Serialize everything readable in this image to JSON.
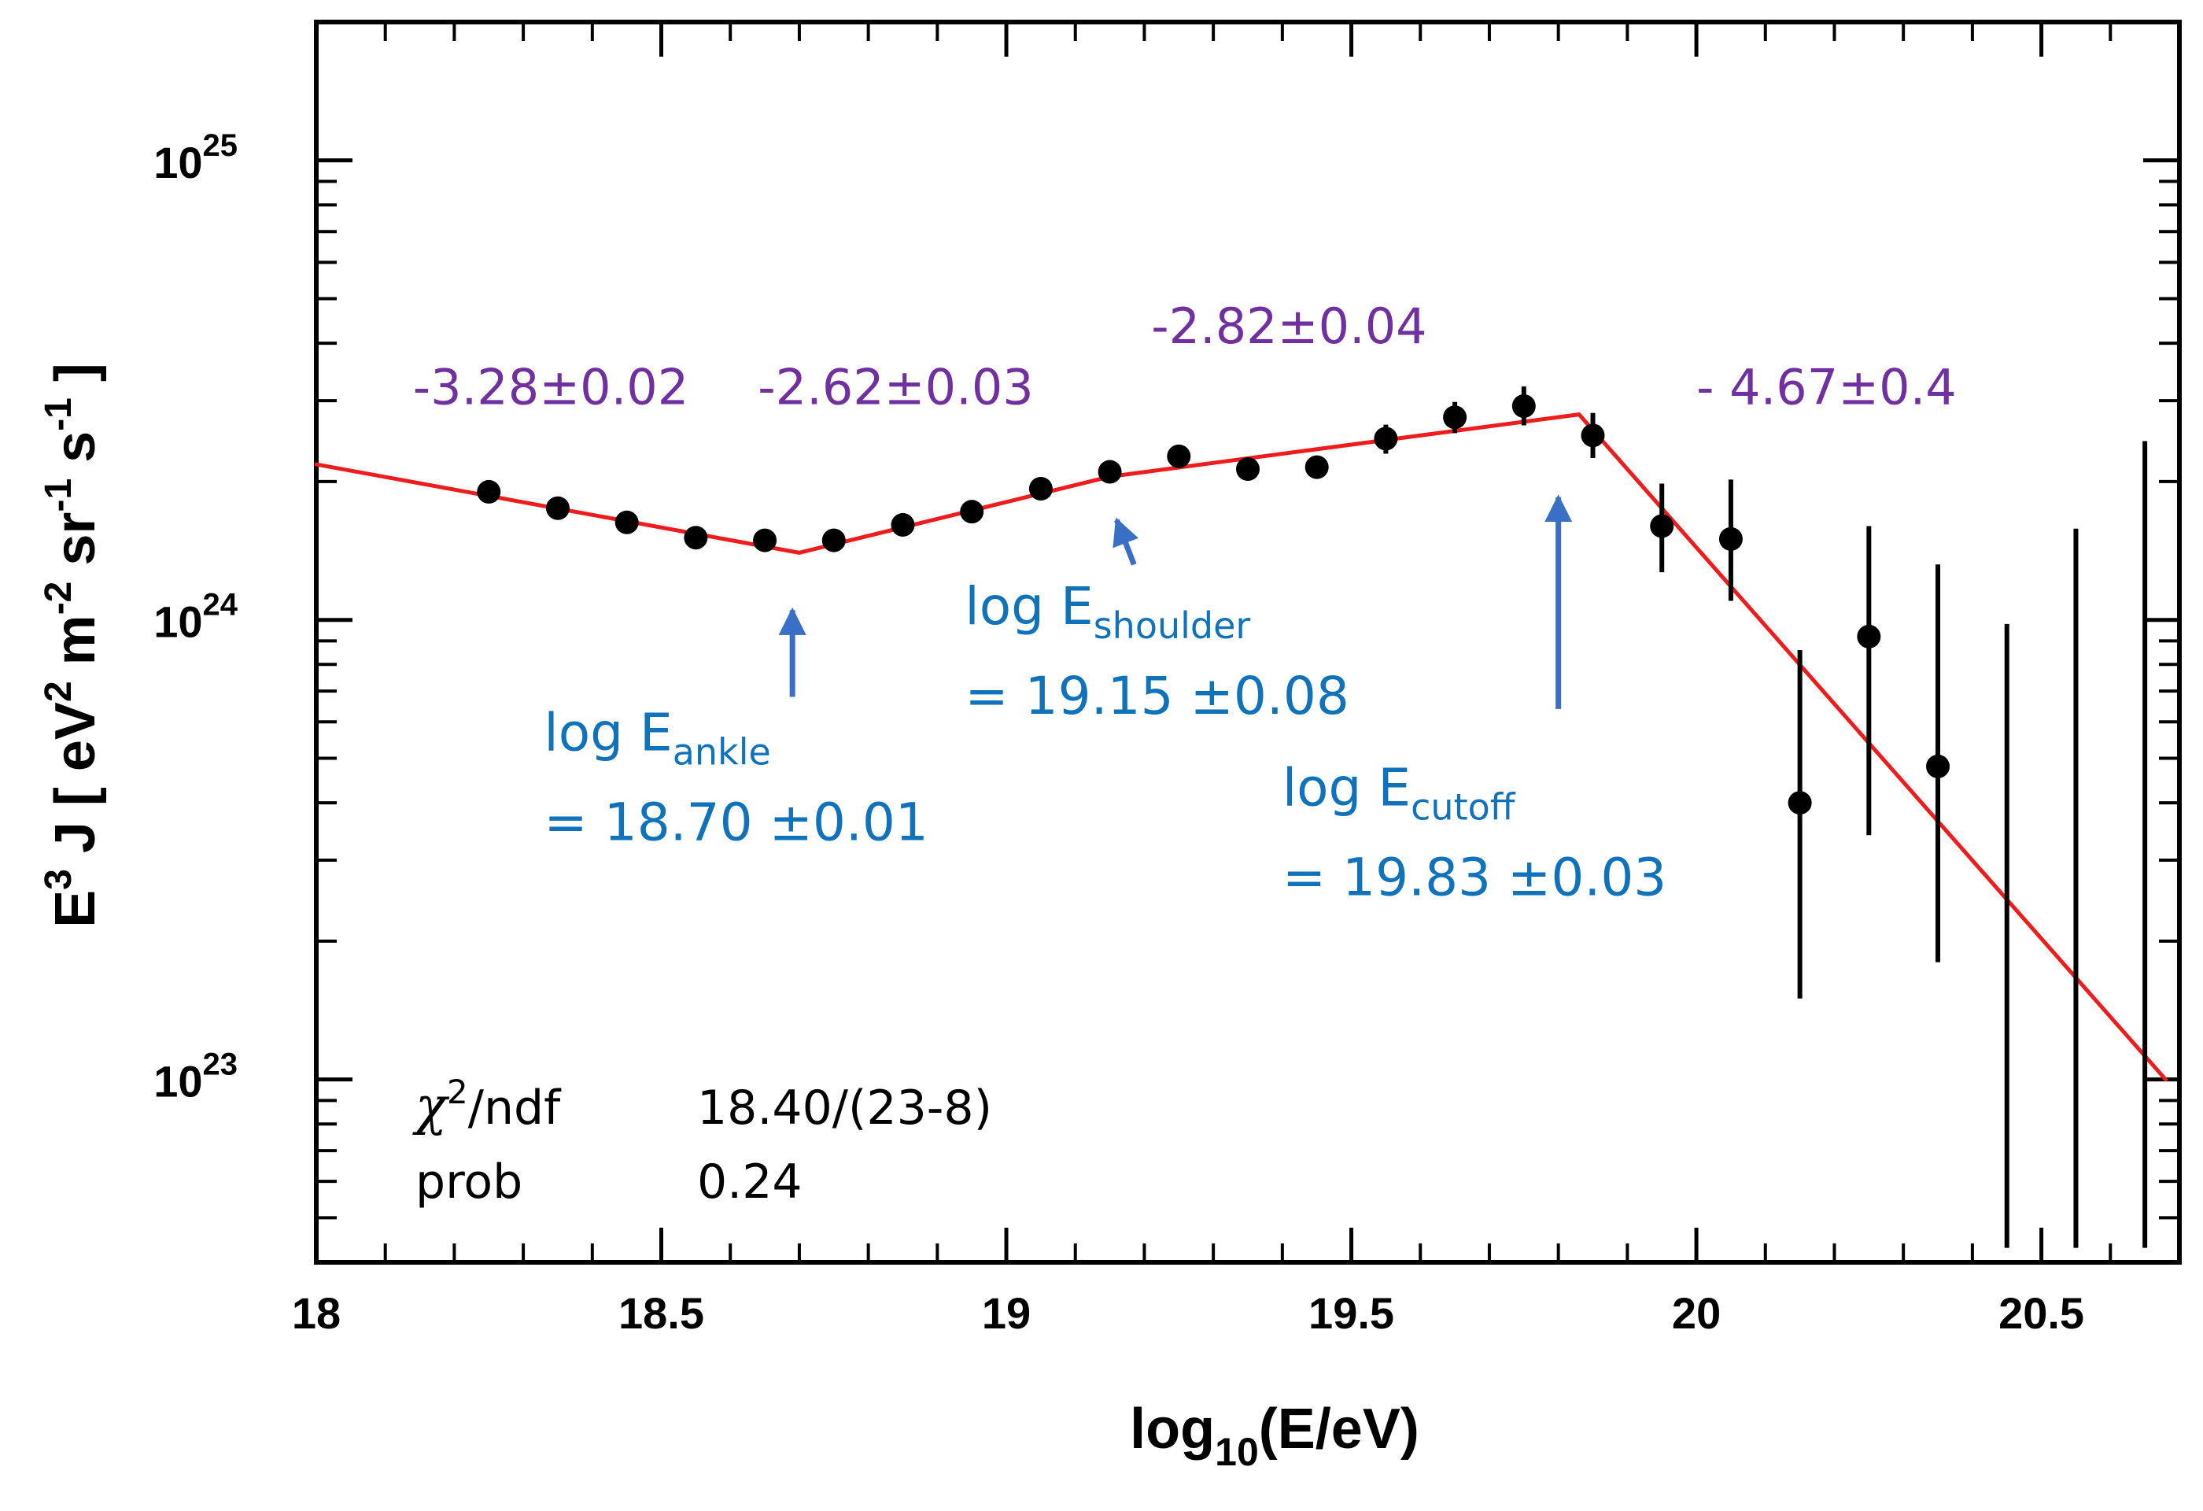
{
  "chart_data": {
    "type": "scatter",
    "xlabel": "log",
    "xlabel_sub": "10",
    "xlabel_tail": "(E/eV)",
    "ylabel_parts": [
      {
        "t": "E",
        "s": ""
      },
      {
        "t": "3",
        "s": "sup"
      },
      {
        "t": " J [ eV",
        "s": ""
      },
      {
        "t": "2",
        "s": "sup"
      },
      {
        "t": " m",
        "s": ""
      },
      {
        "t": "-2",
        "s": "sup"
      },
      {
        "t": " sr",
        "s": ""
      },
      {
        "t": "-1",
        "s": "sup"
      },
      {
        "t": " s",
        "s": ""
      },
      {
        "t": "-1",
        "s": "sup"
      },
      {
        "t": " ]",
        "s": ""
      }
    ],
    "xlim": [
      18.0,
      20.7
    ],
    "ylim": [
      4e+22,
      2e+25
    ],
    "yscale": "log",
    "x_ticks": [
      {
        "v": 18.0,
        "label": "18"
      },
      {
        "v": 18.5,
        "label": "18.5"
      },
      {
        "v": 19.0,
        "label": "19"
      },
      {
        "v": 19.5,
        "label": "19.5"
      },
      {
        "v": 20.0,
        "label": "20"
      },
      {
        "v": 20.5,
        "label": "20.5"
      }
    ],
    "y_ticks": [
      {
        "exp": 23,
        "base": "10",
        "sup": "23"
      },
      {
        "exp": 24,
        "base": "10",
        "sup": "24"
      },
      {
        "exp": 25,
        "base": "10",
        "sup": "25"
      }
    ],
    "series": [
      {
        "name": "data",
        "color": "#000000",
        "points": [
          {
            "x": 18.25,
            "y": 1.9e+24,
            "lo": 1.84e+24,
            "hi": 1.96e+24
          },
          {
            "x": 18.35,
            "y": 1.75e+24,
            "lo": 1.7e+24,
            "hi": 1.8e+24
          },
          {
            "x": 18.45,
            "y": 1.63e+24,
            "lo": 1.58e+24,
            "hi": 1.68e+24
          },
          {
            "x": 18.55,
            "y": 1.51e+24,
            "lo": 1.46e+24,
            "hi": 1.56e+24
          },
          {
            "x": 18.65,
            "y": 1.49e+24,
            "lo": 1.44e+24,
            "hi": 1.54e+24
          },
          {
            "x": 18.75,
            "y": 1.49e+24,
            "lo": 1.44e+24,
            "hi": 1.54e+24
          },
          {
            "x": 18.85,
            "y": 1.61e+24,
            "lo": 1.56e+24,
            "hi": 1.66e+24
          },
          {
            "x": 18.95,
            "y": 1.72e+24,
            "lo": 1.66e+24,
            "hi": 1.78e+24
          },
          {
            "x": 19.05,
            "y": 1.93e+24,
            "lo": 1.86e+24,
            "hi": 2e+24
          },
          {
            "x": 19.15,
            "y": 2.1e+24,
            "lo": 2.02e+24,
            "hi": 2.18e+24
          },
          {
            "x": 19.25,
            "y": 2.27e+24,
            "lo": 2.18e+24,
            "hi": 2.36e+24
          },
          {
            "x": 19.35,
            "y": 2.13e+24,
            "lo": 2.04e+24,
            "hi": 2.22e+24
          },
          {
            "x": 19.45,
            "y": 2.15e+24,
            "lo": 2.05e+24,
            "hi": 2.25e+24
          },
          {
            "x": 19.55,
            "y": 2.48e+24,
            "lo": 2.3e+24,
            "hi": 2.66e+24
          },
          {
            "x": 19.65,
            "y": 2.76e+24,
            "lo": 2.55e+24,
            "hi": 2.98e+24
          },
          {
            "x": 19.75,
            "y": 2.92e+24,
            "lo": 2.65e+24,
            "hi": 3.22e+24
          },
          {
            "x": 19.85,
            "y": 2.52e+24,
            "lo": 2.25e+24,
            "hi": 2.82e+24
          },
          {
            "x": 19.95,
            "y": 1.6e+24,
            "lo": 1.27e+24,
            "hi": 1.98e+24
          },
          {
            "x": 20.05,
            "y": 1.5e+24,
            "lo": 1.1e+24,
            "hi": 2.02e+24
          },
          {
            "x": 20.15,
            "y": 4e+23,
            "lo": 1.5e+23,
            "hi": 8.6e+23
          },
          {
            "x": 20.25,
            "y": 9.2e+23,
            "lo": 3.4e+23,
            "hi": 1.6e+24
          },
          {
            "x": 20.35,
            "y": 4.8e+23,
            "lo": 1.8e+23,
            "hi": 1.32e+24
          },
          {
            "x": 20.45,
            "y": null,
            "lo": 4.3e+22,
            "hi": 9.8e+23
          },
          {
            "x": 20.55,
            "y": null,
            "lo": 4.3e+22,
            "hi": 1.58e+24
          },
          {
            "x": 20.65,
            "y": null,
            "lo": 4.3e+22,
            "hi": 2.45e+24
          }
        ]
      },
      {
        "name": "fit",
        "color": "#ee1c1c",
        "type": "line",
        "x": [
          18.0,
          18.7,
          19.15,
          19.83,
          20.68
        ],
        "y": [
          2.18e+24,
          1.4e+24,
          2.05e+24,
          2.8e+24,
          1e+23
        ]
      }
    ],
    "annotations": {
      "slopes": [
        {
          "text": "-3.28±0.02",
          "x": 18.14,
          "y": 2.95e+24
        },
        {
          "text": "-2.62±0.03",
          "x": 18.64,
          "y": 2.95e+24
        },
        {
          "text": "-2.82±0.04",
          "x": 19.21,
          "y": 4e+24
        },
        {
          "text": "- 4.67±0.4",
          "x": 20.0,
          "y": 2.95e+24
        }
      ],
      "breaks": [
        {
          "label": "log E",
          "sub": "ankle",
          "value": "= 18.70 ±0.01",
          "lx": 18.33,
          "ly": 5.2e+23,
          "arrow_from": [
            18.69,
            6.8e+23
          ],
          "arrow_to": [
            18.69,
            1.05e+24
          ]
        },
        {
          "label": "log E",
          "sub": "shoulder",
          "value": "= 19.15 ±0.08",
          "lx": 18.94,
          "ly": 9.8e+23,
          "arrow_from": [
            19.185,
            1.32e+24
          ],
          "arrow_to": [
            19.16,
            1.65e+24
          ]
        },
        {
          "label": "log E",
          "sub": "cutoff",
          "value": "= 19.83 ±0.03",
          "lx": 19.4,
          "ly": 3.95e+23,
          "arrow_from": [
            19.8,
            6.4e+23
          ],
          "arrow_to": [
            19.8,
            1.85e+24
          ]
        }
      ]
    },
    "stats": {
      "chi_symbol": "χ",
      "chi_sup": "2",
      "chi_tail": "/ndf",
      "chi_value": "18.40/(23-8)",
      "prob_label": "prob",
      "prob_value": "0.24"
    },
    "colors": {
      "axes": "#000000",
      "slope_text": "#7030a0",
      "break_text": "#0f72ba",
      "arrow": "#4472c4"
    }
  }
}
